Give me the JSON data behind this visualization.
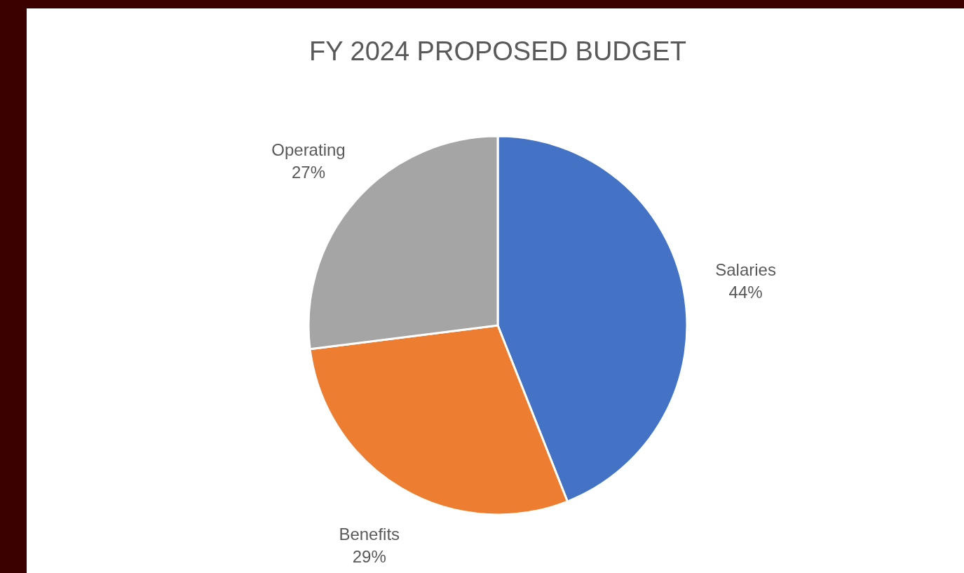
{
  "chart_data": {
    "type": "pie",
    "title": "FY 2024 PROPOSED BUDGET",
    "categories": [
      "Salaries",
      "Benefits",
      "Operating"
    ],
    "values": [
      44,
      29,
      27
    ],
    "colors": [
      "#4472c4",
      "#ed7d31",
      "#a5a5a5"
    ],
    "value_labels": [
      "44%",
      "29%",
      "27%"
    ]
  }
}
